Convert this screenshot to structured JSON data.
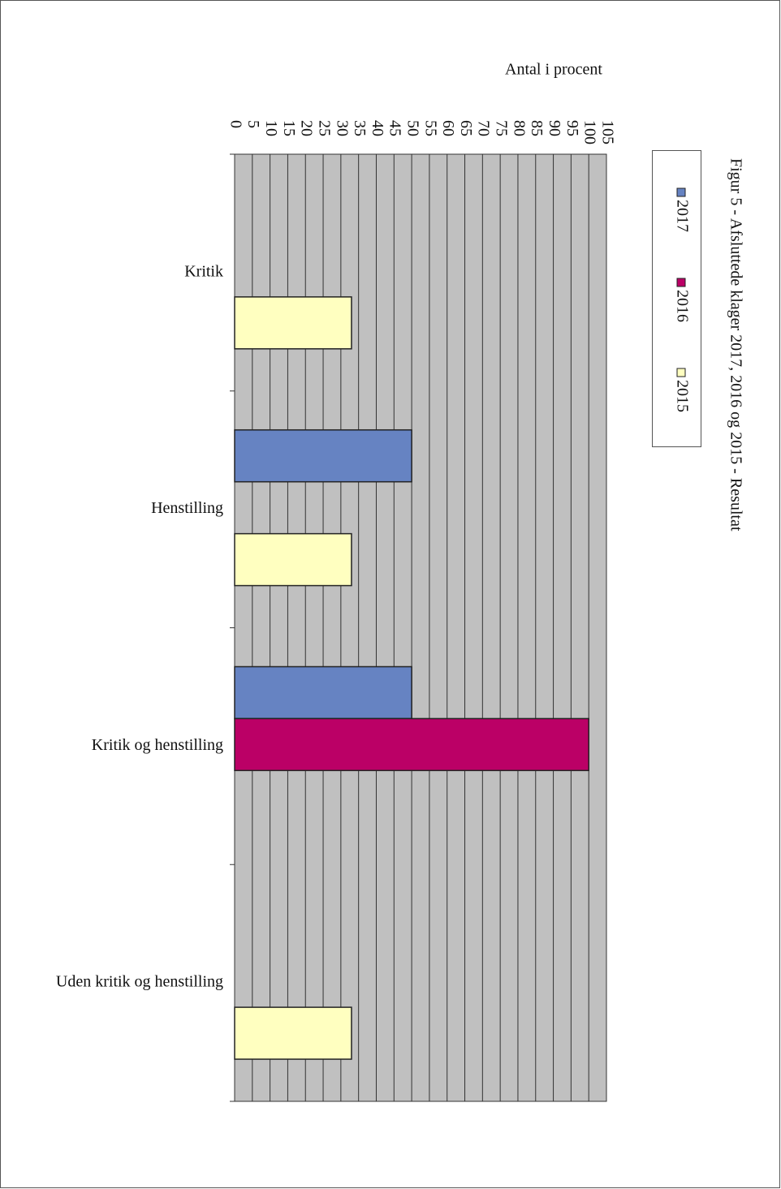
{
  "chart_data": {
    "type": "bar",
    "orientation": "horizontal",
    "title": "Figur 5 - Afsluttede klager 2017, 2016 og 2015 - Resultat",
    "x_label": "Antal i procent",
    "categories": [
      "Kritik",
      "Henstilling",
      "Kritik og henstilling",
      "Uden kritik og henstilling"
    ],
    "series": [
      {
        "name": "2017",
        "color": "#6683c2",
        "values": [
          0,
          50,
          50,
          0
        ]
      },
      {
        "name": "2016",
        "color": "#bb0066",
        "values": [
          0,
          0,
          100,
          0
        ]
      },
      {
        "name": "2015",
        "color": "#ffffc0",
        "values": [
          33,
          33,
          0,
          33
        ]
      }
    ],
    "xlim": [
      0,
      105
    ],
    "xticks": [
      0,
      5,
      10,
      15,
      20,
      25,
      30,
      35,
      40,
      45,
      50,
      55,
      60,
      65,
      70,
      75,
      80,
      85,
      90,
      95,
      100,
      105
    ],
    "grid": true,
    "plot_background": "#c0c0c0"
  }
}
